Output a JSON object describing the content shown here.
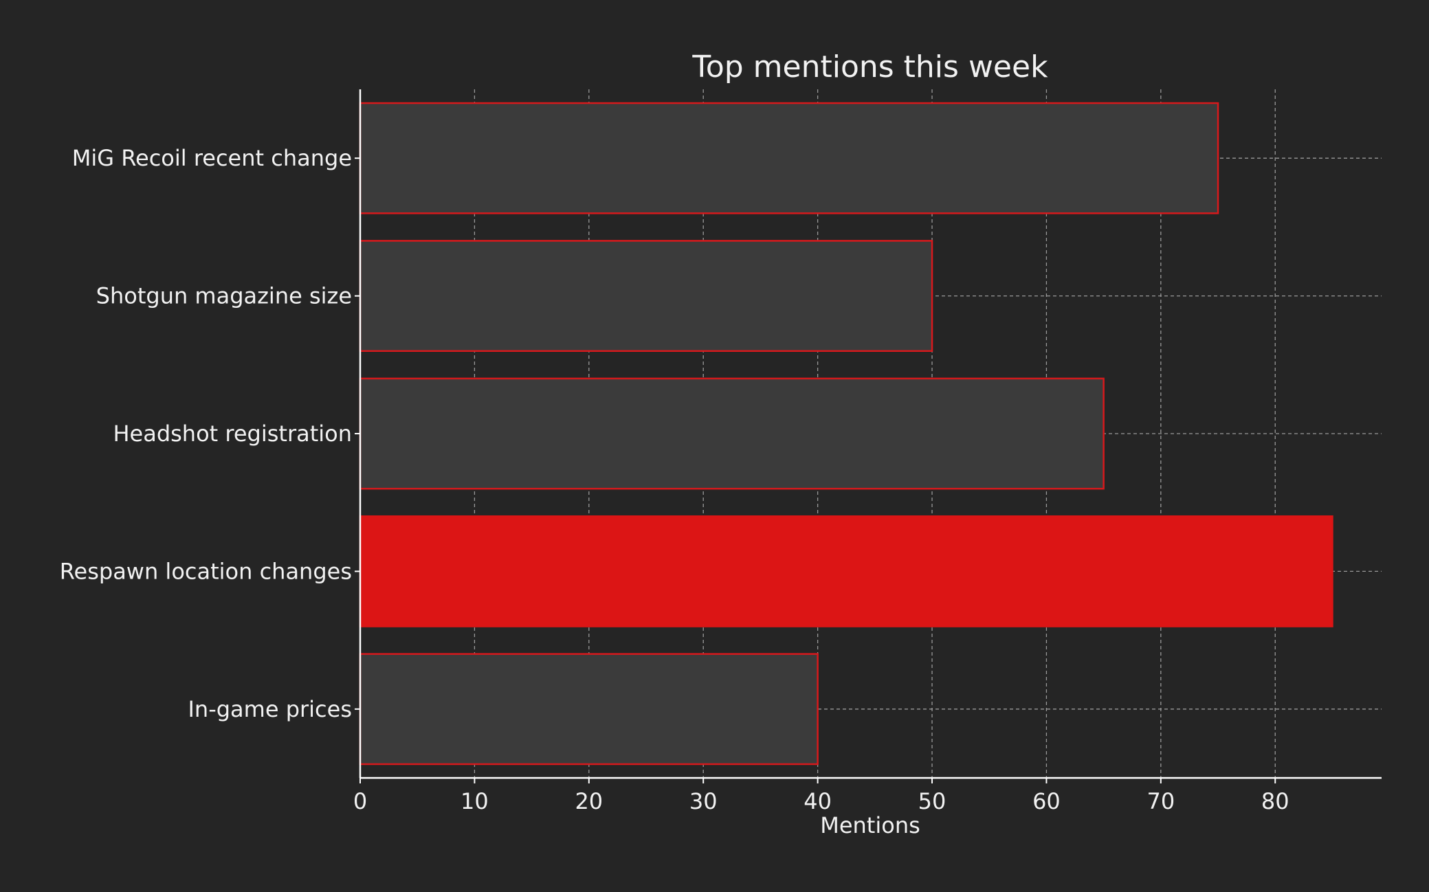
{
  "colors": {
    "background": "#252525",
    "bar_fill": "#3b3b3b",
    "bar_edge": "#d7191c",
    "highlight_fill": "#dc1515",
    "text": "#f2f2f2",
    "grid": "#9a9a9a",
    "axis": "#ffffff"
  },
  "chart_data": {
    "type": "bar",
    "orientation": "horizontal",
    "title": "Top mentions this week",
    "xlabel": "Mentions",
    "ylabel": "",
    "categories": [
      "MiG Recoil recent change",
      "Shotgun magazine size",
      "Headshot registration",
      "Respawn location changes",
      "In-game prices"
    ],
    "values": [
      75,
      50,
      65,
      85,
      40
    ],
    "highlighted_category": "Respawn location changes",
    "xlim": [
      0,
      89.3
    ],
    "xticks": [
      0,
      10,
      20,
      30,
      40,
      50,
      60,
      70,
      80
    ],
    "grid": true,
    "legend": "none"
  }
}
